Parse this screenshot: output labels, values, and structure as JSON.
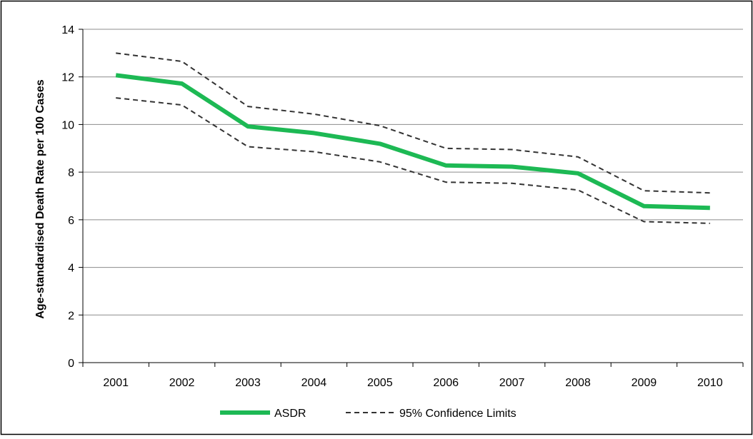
{
  "chart_data": {
    "type": "line",
    "title": "",
    "xlabel": "",
    "ylabel": "Age-standardised Death Rate per 100 Cases",
    "categories": [
      "2001",
      "2002",
      "2003",
      "2004",
      "2005",
      "2006",
      "2007",
      "2008",
      "2009",
      "2010"
    ],
    "ylim": [
      0,
      14
    ],
    "yticks": [
      0,
      2,
      4,
      6,
      8,
      10,
      12,
      14
    ],
    "grid": "horizontal",
    "legend_position": "bottom",
    "series": [
      {
        "name": "ASDR",
        "style": "solid",
        "color": "#1db954",
        "values": [
          12.07,
          11.72,
          9.92,
          9.64,
          9.19,
          8.28,
          8.23,
          7.95,
          6.57,
          6.5
        ]
      },
      {
        "name": "95% Confidence Limits",
        "style": "dashed",
        "color": "#333333",
        "role": "upper",
        "values": [
          13.0,
          12.65,
          10.76,
          10.44,
          9.95,
          9.0,
          8.95,
          8.64,
          7.22,
          7.13
        ]
      },
      {
        "name": "95% Confidence Limits",
        "style": "dashed",
        "color": "#333333",
        "role": "lower",
        "values": [
          11.12,
          10.82,
          9.07,
          8.86,
          8.43,
          7.58,
          7.53,
          7.25,
          5.92,
          5.85
        ]
      }
    ],
    "legend": [
      {
        "label": "ASDR",
        "style": "solid",
        "color": "#1db954"
      },
      {
        "label": "95% Confidence Limits",
        "style": "dashed",
        "color": "#333333"
      }
    ]
  }
}
